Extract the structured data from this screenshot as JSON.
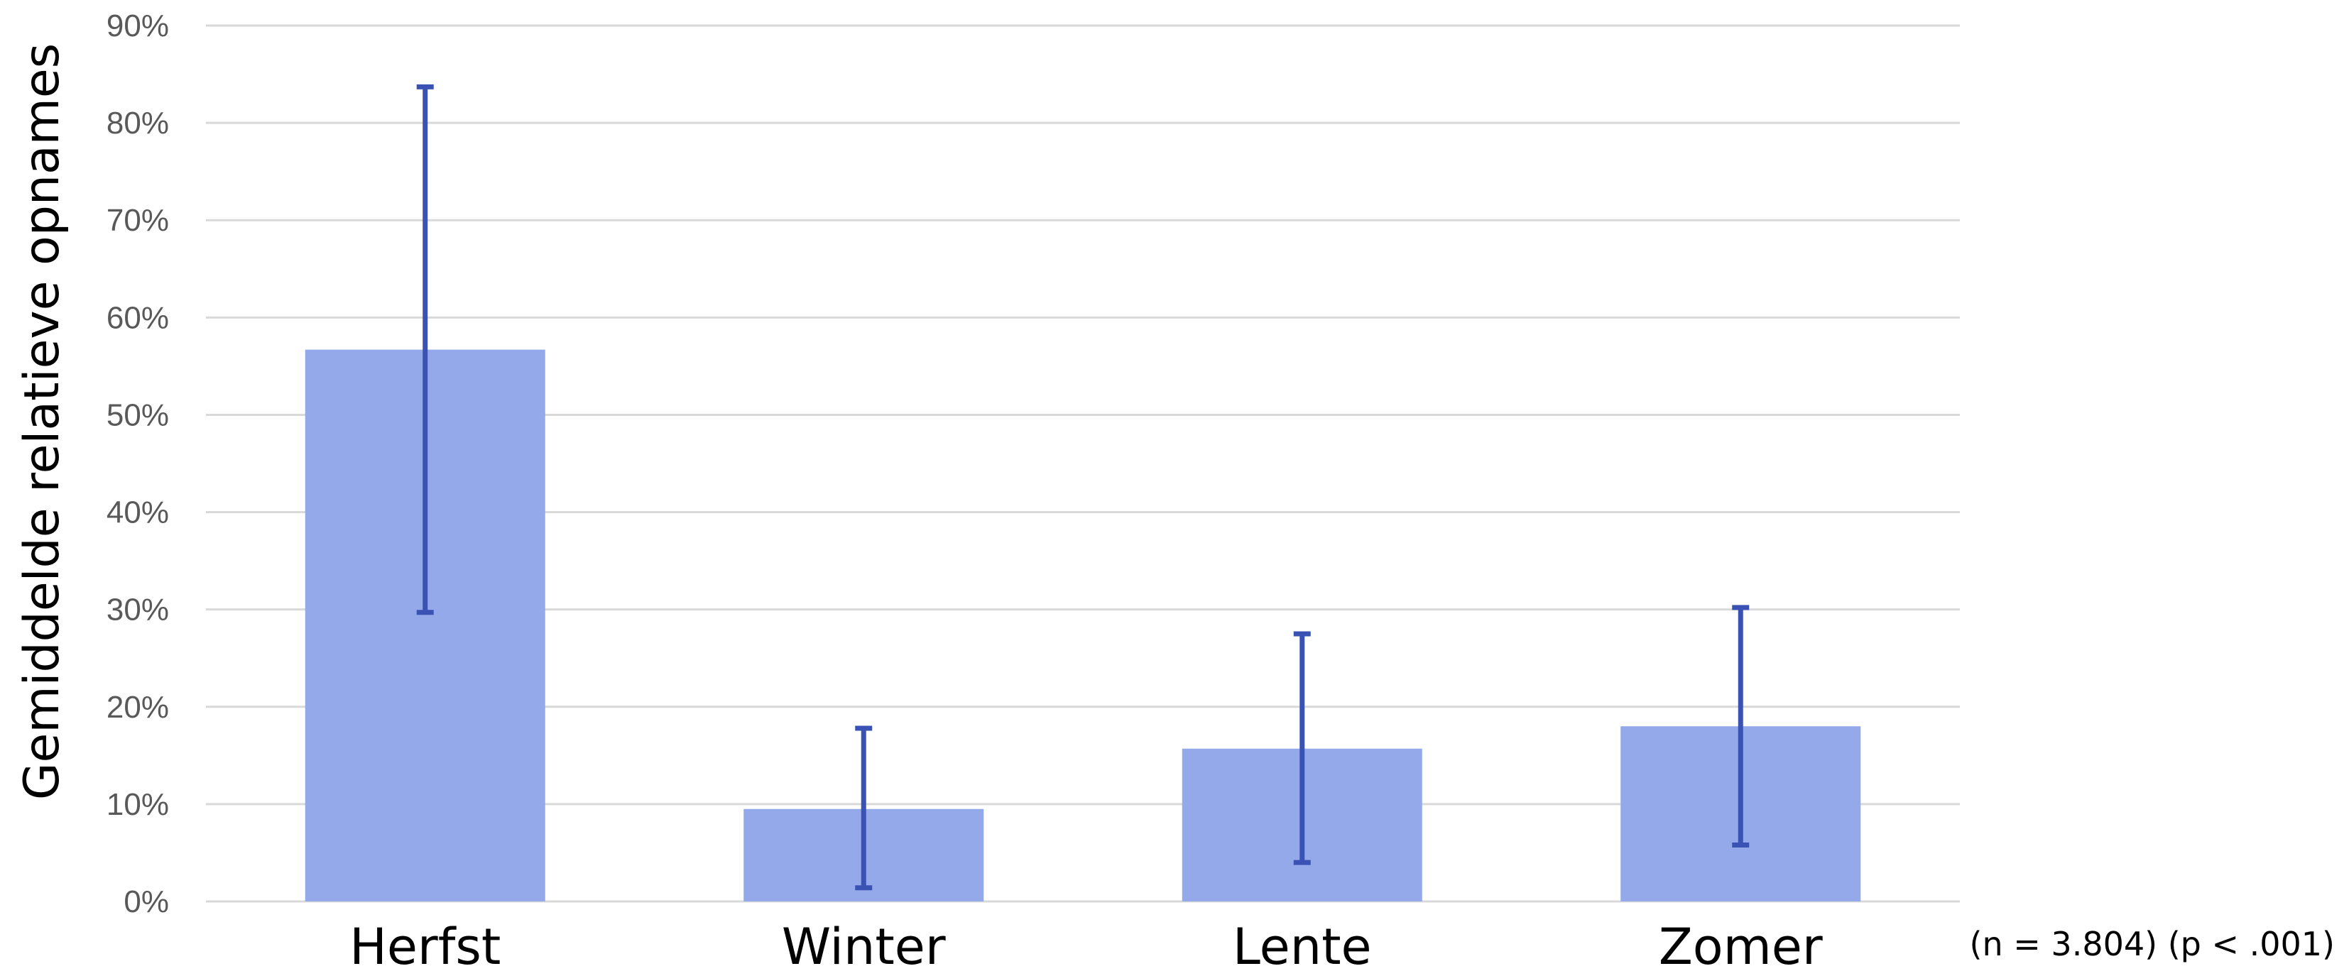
{
  "chart_data": {
    "type": "bar",
    "categories": [
      "Herfst",
      "Winter",
      "Lente",
      "Zomer"
    ],
    "values": [
      0.567,
      0.095,
      0.157,
      0.18
    ],
    "error_bars": {
      "lower": [
        0.297,
        0.014,
        0.04,
        0.058
      ],
      "upper": [
        0.837,
        0.178,
        0.275,
        0.302
      ]
    },
    "ylabel": "Gemiddelde relatieve opnames",
    "xlabel": "",
    "ylim": [
      0,
      0.9
    ],
    "yticks": [
      "0%",
      "10%",
      "20%",
      "30%",
      "40%",
      "50%",
      "60%",
      "70%",
      "80%",
      "90%"
    ],
    "annotation": "(n = 3.804) (p < .001)",
    "grid": true,
    "bar_color": "#94a9ea",
    "error_color": "#3a52b3",
    "grid_color": "#d9d9d9"
  }
}
